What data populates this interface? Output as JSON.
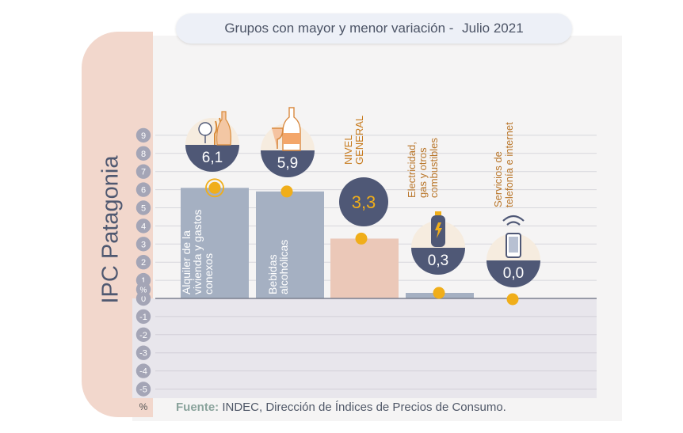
{
  "header": {
    "title": "Grupos con mayor y menor variación",
    "separator": " - ",
    "date": "Julio 2021"
  },
  "side_label": "IPC Patagonia",
  "source": {
    "label": "Fuente:",
    "text": "INDEC, Dirección de Índices de Precios de Consumo."
  },
  "colors": {
    "bar_grey": "#a5b0c2",
    "bar_general": "#ebc8b8",
    "bubble_navy": "#4f5876",
    "bubble_cream": "#f6ecdf",
    "dot_orange": "#f0ae1a",
    "tick_circle": "#a4a5b6",
    "negative_area": "#e8e6ec",
    "side_tab": "#f2d7cc"
  },
  "chart_data": {
    "type": "bar",
    "title": "Grupos con mayor y menor variación - Julio 2021",
    "ylabel": "%",
    "ylim": [
      -5,
      9
    ],
    "yticks": [
      9,
      8,
      7,
      6,
      5,
      4,
      3,
      2,
      1,
      0,
      -1,
      -2,
      -3,
      -4,
      -5
    ],
    "grid": true,
    "categories": [
      "Alquiler de la vivienda y gastos conexos",
      "Bebidas alcohólicas",
      "NIVEL GENERAL",
      "Electricidad, gas y otros combustibles",
      "Servicios de telefonía e internet"
    ],
    "values": [
      6.1,
      5.9,
      3.3,
      0.3,
      0.0
    ],
    "value_labels": [
      "6,1",
      "5,9",
      "3,3",
      "0,3",
      "0,0"
    ],
    "category_lines": [
      [
        "Alquiler de la",
        "vivienda y gastos",
        "conexos"
      ],
      [
        "Bebidas",
        "alcohólicas"
      ],
      [
        "NIVEL",
        "GENERAL"
      ],
      [
        "Electricidad,",
        "gas y otros",
        "combustibles"
      ],
      [
        "Servicios de",
        "telefonía e internet"
      ]
    ],
    "icons": [
      "glassware-icon",
      "bottles-icon",
      "",
      "gas-cylinder-icon",
      "phone-wifi-icon"
    ]
  }
}
